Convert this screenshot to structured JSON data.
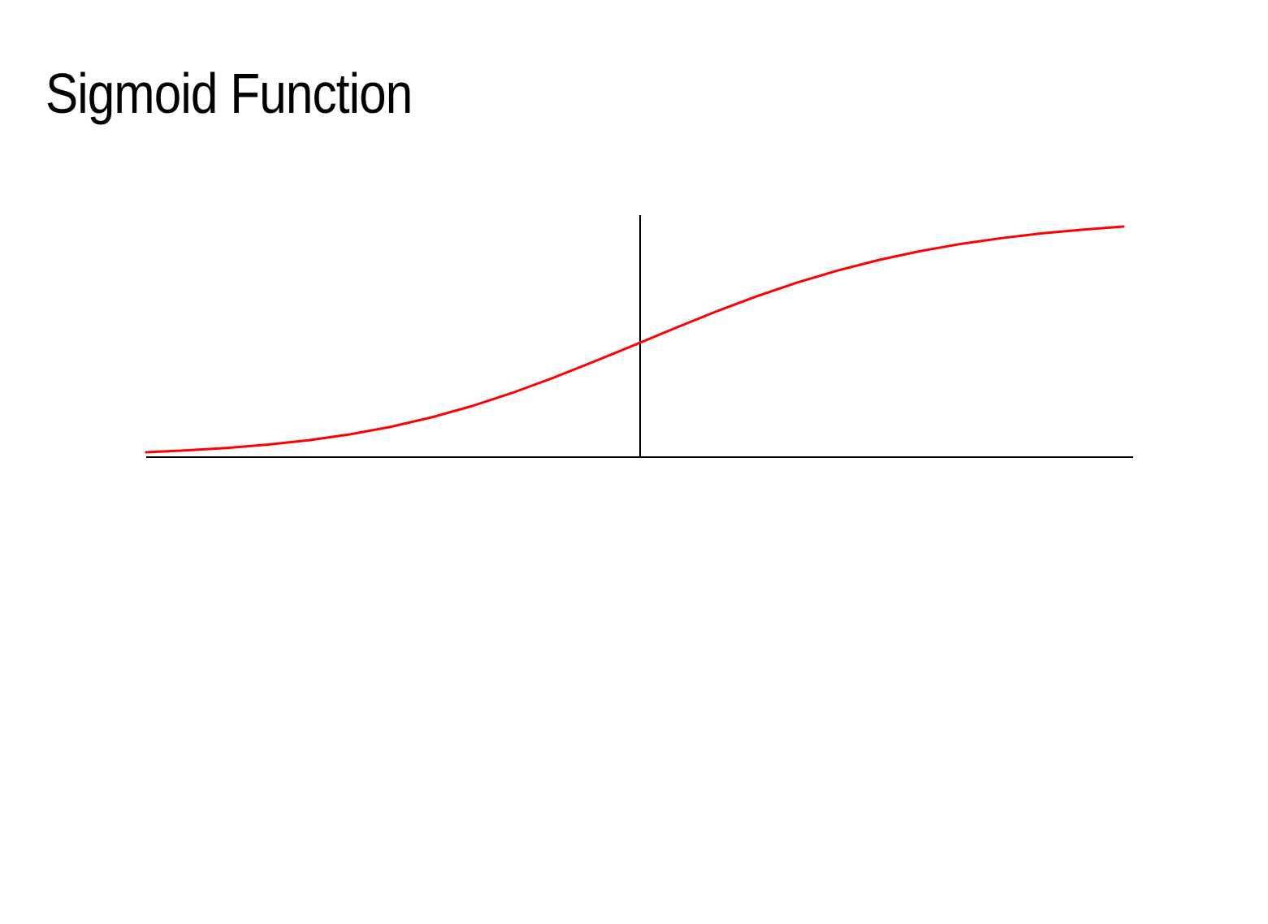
{
  "slide": {
    "title": "Sigmoid Function"
  },
  "chart_data": {
    "type": "line",
    "title": "",
    "xlabel": "",
    "ylabel": "",
    "xlim": [
      -6,
      6
    ],
    "ylim": [
      0,
      1
    ],
    "grid": false,
    "legend": "none",
    "series": [
      {
        "color": "#ff0000",
        "x": [
          -6,
          -5.5,
          -5,
          -4.5,
          -4,
          -3.5,
          -3,
          -2.5,
          -2,
          -1.5,
          -1,
          -0.5,
          0,
          0.5,
          1,
          1.5,
          2,
          2.5,
          3,
          3.5,
          4,
          4.5,
          5,
          5.5,
          6
        ],
        "y": [
          0.02,
          0.028,
          0.038,
          0.052,
          0.07,
          0.094,
          0.125,
          0.164,
          0.211,
          0.266,
          0.328,
          0.395,
          0.464,
          0.534,
          0.602,
          0.665,
          0.722,
          0.772,
          0.815,
          0.851,
          0.881,
          0.905,
          0.925,
          0.94,
          0.953
        ]
      }
    ],
    "axis_color": "#000000"
  }
}
